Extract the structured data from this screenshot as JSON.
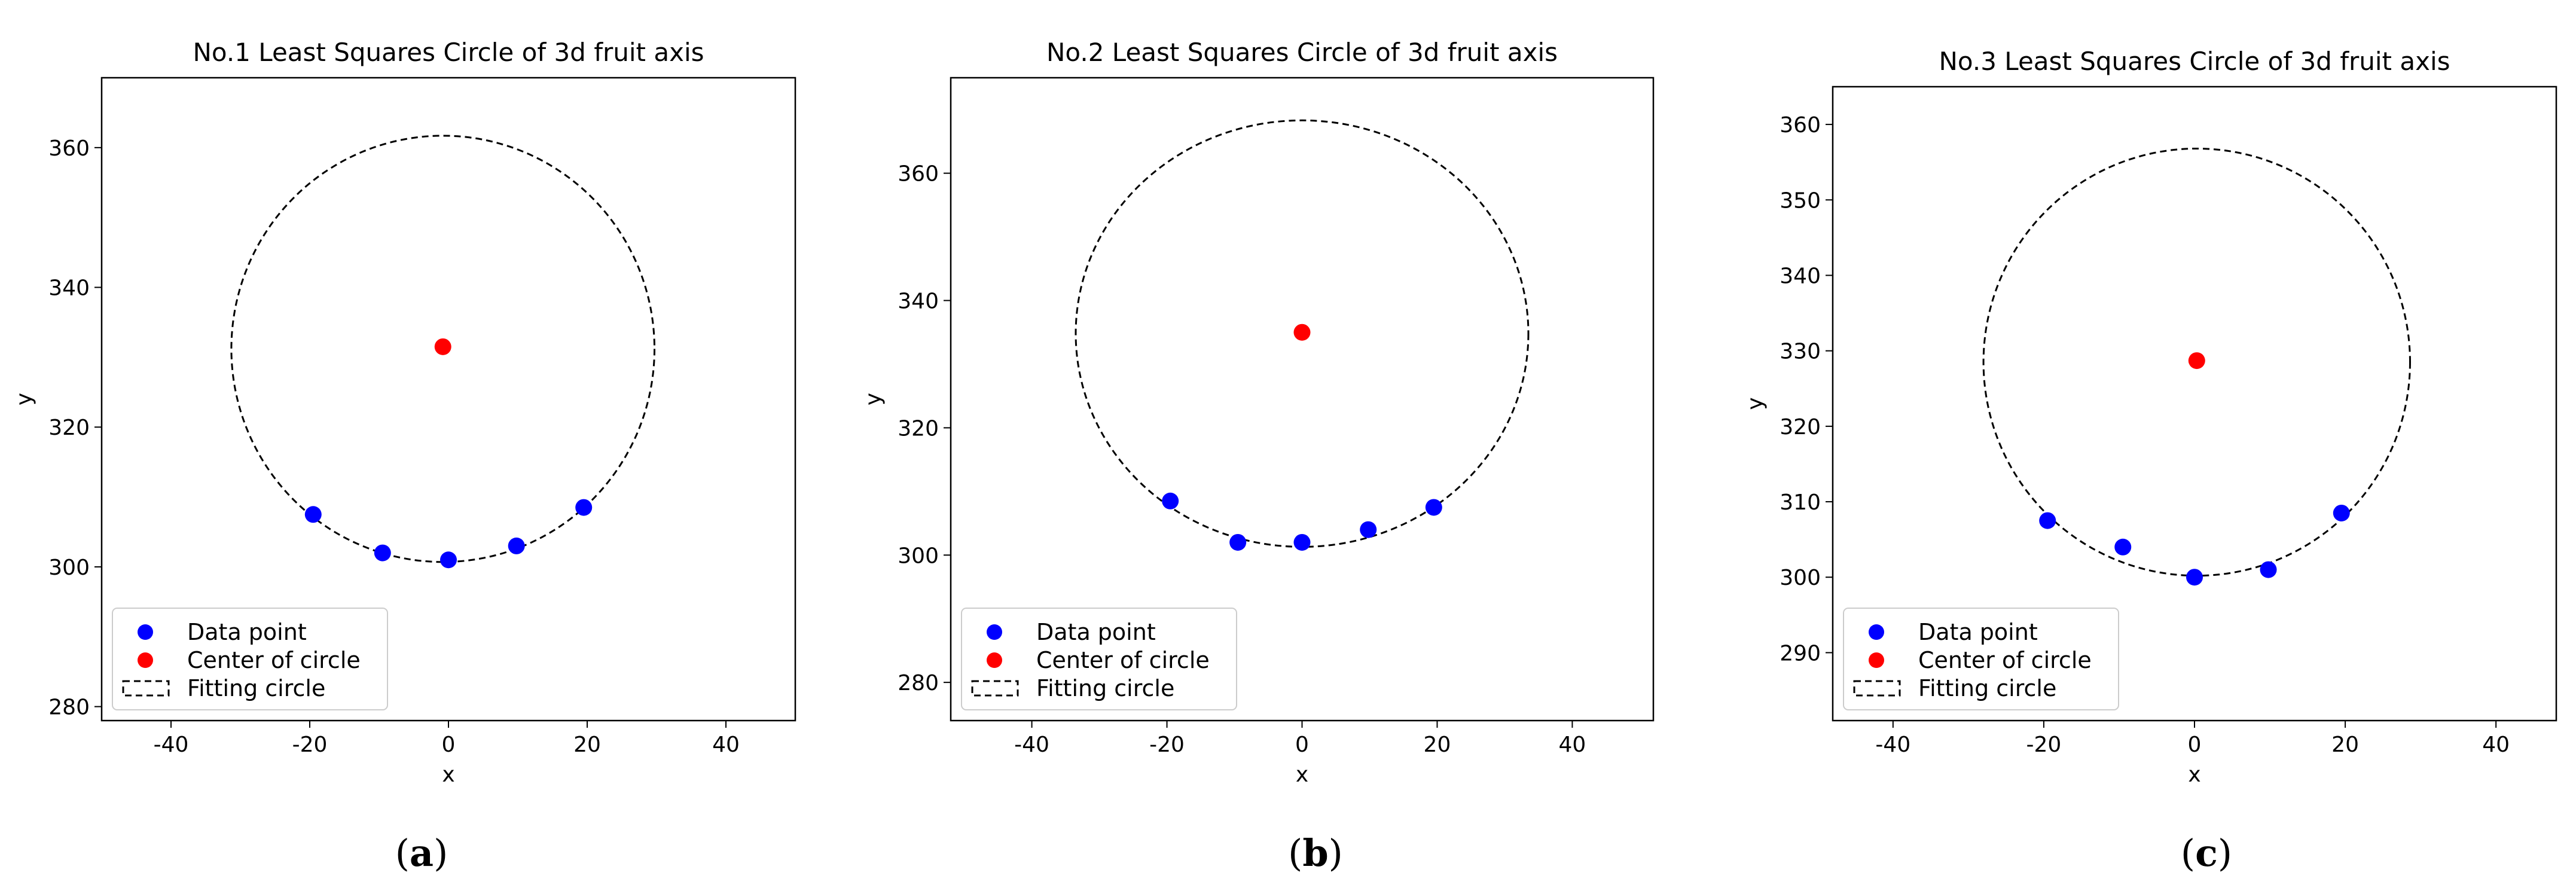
{
  "chart_data": [
    {
      "type": "scatter",
      "title": "No.1 Least Squares Circle of 3d fruit axis",
      "xlabel": "x",
      "ylabel": "y",
      "xlim": [
        -50,
        50
      ],
      "ylim": [
        278,
        370
      ],
      "xticks": [
        -40,
        -20,
        0,
        20,
        40
      ],
      "yticks": [
        280,
        300,
        320,
        340,
        360
      ],
      "caption_open": "(",
      "caption_letter": "a",
      "caption_close": ")",
      "legend_position": "lower left",
      "series": [
        {
          "name": "Data point",
          "color": "#0000ff",
          "x": [
            -19.5,
            -9.5,
            0,
            9.8,
            19.5
          ],
          "y": [
            307.5,
            302,
            301,
            303,
            308.5
          ]
        },
        {
          "name": "Center of circle",
          "color": "#ff0000",
          "x": [
            -0.8
          ],
          "y": [
            331.5
          ]
        },
        {
          "name": "Fitting circle",
          "color": "#000000",
          "style": "dashed",
          "circle": {
            "cx": -0.8,
            "cy": 331.2,
            "r": 30.5
          }
        }
      ]
    },
    {
      "type": "scatter",
      "title": "No.2 Least Squares Circle of 3d fruit axis",
      "xlabel": "x",
      "ylabel": "y",
      "xlim": [
        -52,
        52
      ],
      "ylim": [
        274,
        375
      ],
      "xticks": [
        -40,
        -20,
        0,
        20,
        40
      ],
      "yticks": [
        280,
        300,
        320,
        340,
        360
      ],
      "caption_open": "(",
      "caption_letter": "b",
      "caption_close": ")",
      "legend_position": "lower left",
      "series": [
        {
          "name": "Data point",
          "color": "#0000ff",
          "x": [
            -19.5,
            -9.5,
            0,
            9.8,
            19.5
          ],
          "y": [
            308.5,
            302,
            302,
            304,
            307.5
          ]
        },
        {
          "name": "Center of circle",
          "color": "#ff0000",
          "x": [
            0
          ],
          "y": [
            335
          ]
        },
        {
          "name": "Fitting circle",
          "color": "#000000",
          "style": "dashed",
          "circle": {
            "cx": 0,
            "cy": 334.8,
            "r": 33.5
          }
        }
      ]
    },
    {
      "type": "scatter",
      "title": "No.3 Least Squares Circle of 3d fruit axis",
      "xlabel": "x",
      "ylabel": "y",
      "xlim": [
        -48,
        48
      ],
      "ylim": [
        281,
        365
      ],
      "xticks": [
        -40,
        -20,
        0,
        20,
        40
      ],
      "yticks": [
        290,
        300,
        310,
        320,
        330,
        340,
        350,
        360
      ],
      "caption_open": "(",
      "caption_letter": "c",
      "caption_close": ")",
      "legend_position": "lower left",
      "series": [
        {
          "name": "Data point",
          "color": "#0000ff",
          "x": [
            -19.5,
            -9.5,
            0,
            9.8,
            19.5
          ],
          "y": [
            307.5,
            304,
            300,
            301,
            308.5
          ]
        },
        {
          "name": "Center of circle",
          "color": "#ff0000",
          "x": [
            0.3
          ],
          "y": [
            328.7
          ]
        },
        {
          "name": "Fitting circle",
          "color": "#000000",
          "style": "dashed",
          "circle": {
            "cx": 0.3,
            "cy": 328.5,
            "r": 28.3
          }
        }
      ]
    }
  ]
}
